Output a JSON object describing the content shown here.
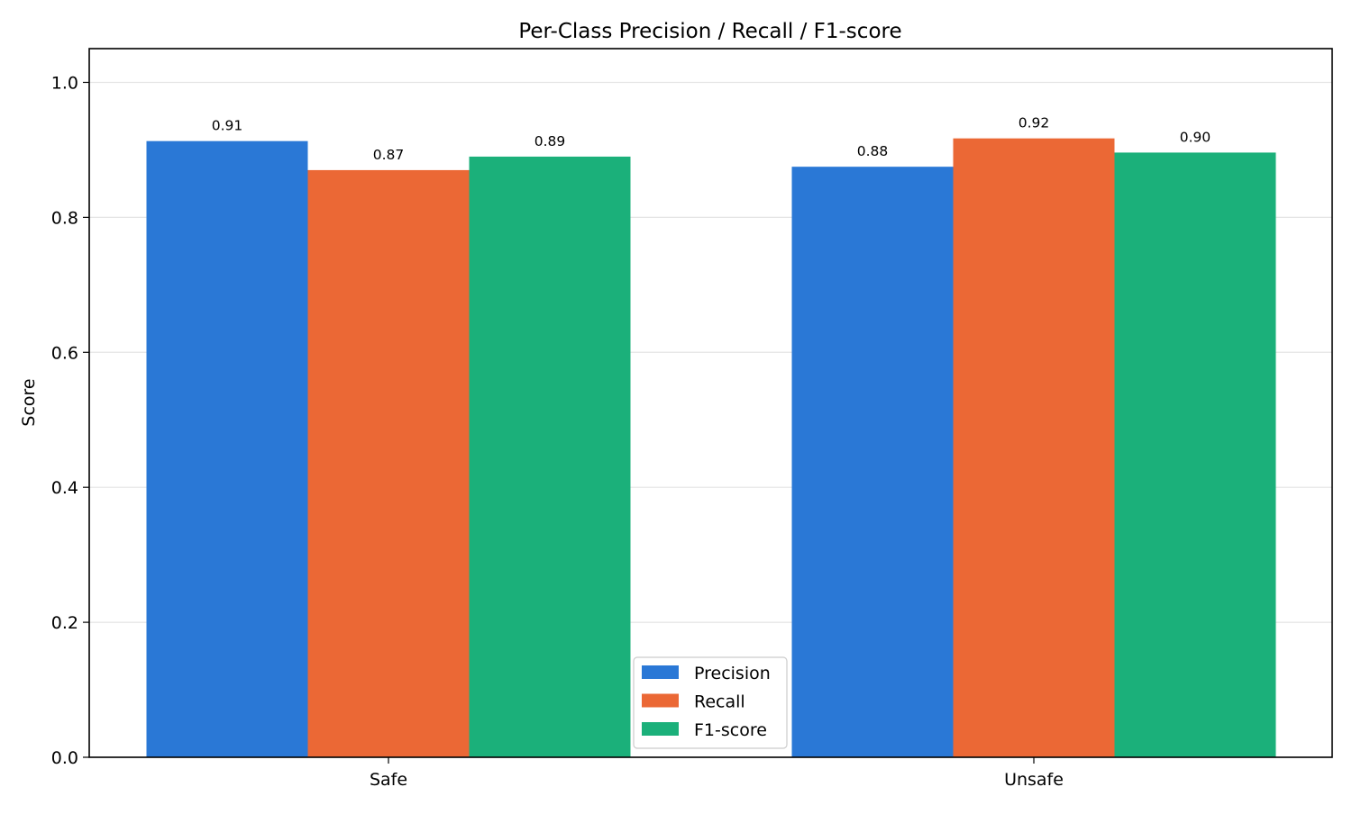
{
  "chart_data": {
    "type": "bar",
    "title": "Per-Class Precision / Recall / F1-score",
    "xlabel": "",
    "ylabel": "Score",
    "ylim": [
      0,
      1.05
    ],
    "yticks": [
      "0.0",
      "0.2",
      "0.4",
      "0.6",
      "0.8",
      "1.0"
    ],
    "categories": [
      "Safe",
      "Unsafe"
    ],
    "grid": "horizontal",
    "legend_position": "bottom-center",
    "series": [
      {
        "name": "Precision",
        "values": [
          0.913,
          0.875
        ],
        "labels": [
          "0.91",
          "0.88"
        ],
        "color": "#2A78D6"
      },
      {
        "name": "Recall",
        "values": [
          0.87,
          0.917
        ],
        "labels": [
          "0.87",
          "0.92"
        ],
        "color": "#EB6835"
      },
      {
        "name": "F1-score",
        "values": [
          0.89,
          0.896
        ],
        "labels": [
          "0.89",
          "0.90"
        ],
        "color": "#1BB07A"
      }
    ]
  }
}
